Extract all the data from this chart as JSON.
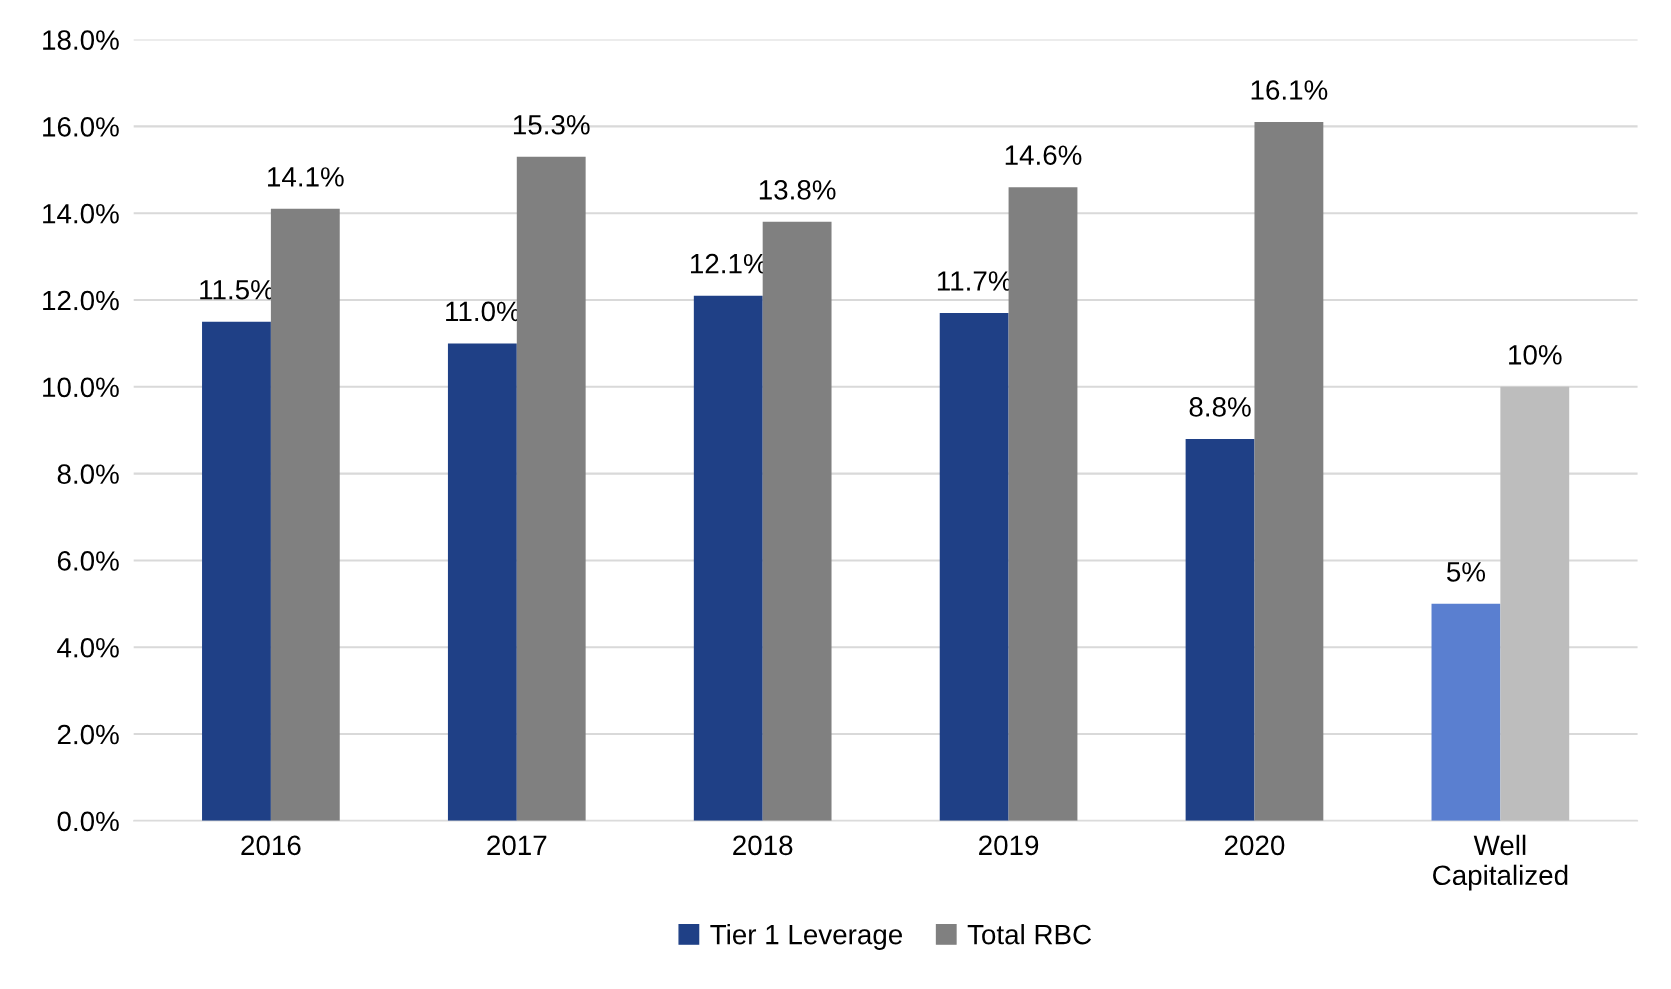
{
  "chart_data": {
    "type": "bar",
    "categories": [
      "2016",
      "2017",
      "2018",
      "2019",
      "2020",
      "Well\nCapitalized"
    ],
    "series": [
      {
        "name": "Tier 1 Leverage",
        "color": "#1f4086",
        "colors": [
          "#1f4086",
          "#1f4086",
          "#1f4086",
          "#1f4086",
          "#1f4086",
          "#5a7fd0"
        ],
        "values": [
          11.5,
          11.0,
          12.1,
          11.7,
          8.8,
          5
        ],
        "value_labels": [
          "11.5%",
          "11.0%",
          "12.1%",
          "11.7%",
          "8.8%",
          "5%"
        ]
      },
      {
        "name": "Total RBC",
        "color": "#808080",
        "colors": [
          "#808080",
          "#808080",
          "#808080",
          "#808080",
          "#808080",
          "#bdbdbd"
        ],
        "values": [
          14.1,
          15.3,
          13.8,
          14.6,
          16.1,
          10
        ],
        "value_labels": [
          "14.1%",
          "15.3%",
          "13.8%",
          "14.6%",
          "16.1%",
          "10%"
        ]
      }
    ],
    "ylim": [
      0,
      18
    ],
    "yticks": [
      {
        "value": 0,
        "label": "0.0%"
      },
      {
        "value": 2,
        "label": "2.0%"
      },
      {
        "value": 4,
        "label": "4.0%"
      },
      {
        "value": 6,
        "label": "6.0%"
      },
      {
        "value": 8,
        "label": "8.0%"
      },
      {
        "value": 10,
        "label": "10.0%"
      },
      {
        "value": 12,
        "label": "12.0%"
      },
      {
        "value": 14,
        "label": "14.0%"
      },
      {
        "value": 16,
        "label": "16.0%"
      },
      {
        "value": 18,
        "label": "18.0%"
      }
    ],
    "grid": "y",
    "legend": "bottom"
  }
}
